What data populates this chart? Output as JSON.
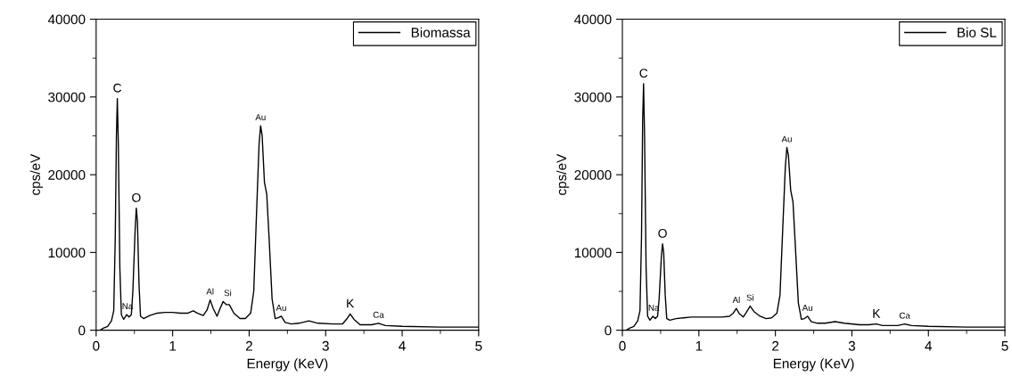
{
  "chart_data": [
    {
      "type": "line",
      "xlabel": "Energy (KeV)",
      "ylabel": "cps/eV",
      "xlim": [
        0,
        5
      ],
      "xticks": [
        0,
        1,
        2,
        3,
        4,
        5
      ],
      "ylim": [
        0,
        40000
      ],
      "yticks": [
        0,
        10000,
        20000,
        30000,
        40000
      ],
      "grid": false,
      "legend": "top right",
      "marker": "none",
      "line_style": "solid",
      "series": [
        {
          "name": "Biomassa",
          "color": "#000000",
          "x": [
            0.05,
            0.1,
            0.15,
            0.2,
            0.23,
            0.25,
            0.265,
            0.277,
            0.29,
            0.31,
            0.33,
            0.36,
            0.4,
            0.43,
            0.46,
            0.48,
            0.51,
            0.525,
            0.54,
            0.56,
            0.58,
            0.62,
            0.7,
            0.8,
            0.9,
            1.0,
            1.1,
            1.2,
            1.27,
            1.32,
            1.4,
            1.45,
            1.49,
            1.53,
            1.58,
            1.62,
            1.66,
            1.7,
            1.74,
            1.8,
            1.88,
            1.95,
            2.02,
            2.06,
            2.1,
            2.13,
            2.15,
            2.17,
            2.2,
            2.23,
            2.26,
            2.3,
            2.34,
            2.38,
            2.42,
            2.47,
            2.55,
            2.65,
            2.78,
            2.9,
            3.1,
            3.22,
            3.28,
            3.32,
            3.37,
            3.45,
            3.6,
            3.69,
            3.78,
            4.0,
            4.5,
            5.0
          ],
          "values": [
            0,
            300,
            500,
            1200,
            2500,
            12000,
            25000,
            29800,
            24000,
            8000,
            2000,
            1400,
            2000,
            1700,
            2000,
            5000,
            13000,
            15700,
            14000,
            6000,
            1800,
            1500,
            1900,
            2200,
            2300,
            2300,
            2200,
            2200,
            2500,
            2200,
            1900,
            2600,
            3900,
            2800,
            1800,
            2800,
            3700,
            3300,
            3300,
            2200,
            1500,
            1500,
            2200,
            5000,
            16000,
            24000,
            26300,
            25000,
            19000,
            17500,
            12000,
            4000,
            1500,
            1600,
            1800,
            1000,
            800,
            900,
            1200,
            900,
            800,
            800,
            1500,
            2100,
            1400,
            700,
            700,
            900,
            600,
            500,
            400,
            400
          ]
        }
      ],
      "annotations": [
        {
          "text": "C",
          "x": 0.277,
          "y": 29800
        },
        {
          "text": "Na",
          "x": 0.41,
          "y": 2000
        },
        {
          "text": "O",
          "x": 0.525,
          "y": 15700
        },
        {
          "text": "Al",
          "x": 1.49,
          "y": 3900
        },
        {
          "text": "Si",
          "x": 1.72,
          "y": 3700
        },
        {
          "text": "Au",
          "x": 2.15,
          "y": 26300
        },
        {
          "text": "Au",
          "x": 2.42,
          "y": 1800
        },
        {
          "text": "K",
          "x": 3.32,
          "y": 2100
        },
        {
          "text": "Ca",
          "x": 3.69,
          "y": 900
        }
      ]
    },
    {
      "type": "line",
      "xlabel": "Energy (KeV)",
      "ylabel": "cps/eV",
      "xlim": [
        0,
        5
      ],
      "xticks": [
        0,
        1,
        2,
        3,
        4,
        5
      ],
      "ylim": [
        0,
        40000
      ],
      "yticks": [
        0,
        10000,
        20000,
        30000,
        40000
      ],
      "grid": false,
      "legend": "top right",
      "marker": "none",
      "line_style": "solid",
      "series": [
        {
          "name": "Bio SL",
          "color": "#000000",
          "x": [
            0.05,
            0.1,
            0.15,
            0.2,
            0.23,
            0.25,
            0.265,
            0.277,
            0.29,
            0.31,
            0.33,
            0.36,
            0.4,
            0.43,
            0.46,
            0.48,
            0.51,
            0.525,
            0.54,
            0.56,
            0.58,
            0.62,
            0.7,
            0.8,
            0.9,
            1.0,
            1.1,
            1.2,
            1.3,
            1.4,
            1.45,
            1.49,
            1.53,
            1.58,
            1.62,
            1.67,
            1.72,
            1.8,
            1.88,
            1.95,
            2.02,
            2.06,
            2.1,
            2.13,
            2.15,
            2.17,
            2.2,
            2.23,
            2.26,
            2.3,
            2.34,
            2.38,
            2.42,
            2.47,
            2.55,
            2.65,
            2.78,
            2.9,
            3.1,
            3.22,
            3.32,
            3.4,
            3.6,
            3.69,
            3.78,
            4.0,
            4.5,
            5.0
          ],
          "values": [
            0,
            300,
            500,
            1200,
            2500,
            12000,
            27000,
            31700,
            25000,
            8000,
            1800,
            1300,
            1800,
            1500,
            1800,
            4000,
            9500,
            11100,
            10000,
            4500,
            1500,
            1300,
            1500,
            1600,
            1700,
            1700,
            1700,
            1700,
            1700,
            1800,
            2200,
            2800,
            2100,
            1700,
            2300,
            3100,
            2400,
            1800,
            1500,
            1600,
            2200,
            4500,
            14000,
            21000,
            23500,
            22500,
            18000,
            16500,
            11000,
            3500,
            1400,
            1500,
            1800,
            1100,
            900,
            900,
            1100,
            900,
            700,
            700,
            800,
            600,
            600,
            800,
            600,
            500,
            400,
            400
          ]
        }
      ],
      "annotations": [
        {
          "text": "C",
          "x": 0.277,
          "y": 31700
        },
        {
          "text": "Na",
          "x": 0.41,
          "y": 1800
        },
        {
          "text": "O",
          "x": 0.525,
          "y": 11100
        },
        {
          "text": "Al",
          "x": 1.49,
          "y": 2800
        },
        {
          "text": "Si",
          "x": 1.67,
          "y": 3100
        },
        {
          "text": "Au",
          "x": 2.15,
          "y": 23500
        },
        {
          "text": "Au",
          "x": 2.42,
          "y": 1800
        },
        {
          "text": "K",
          "x": 3.32,
          "y": 800
        },
        {
          "text": "Ca",
          "x": 3.69,
          "y": 800
        }
      ]
    }
  ]
}
